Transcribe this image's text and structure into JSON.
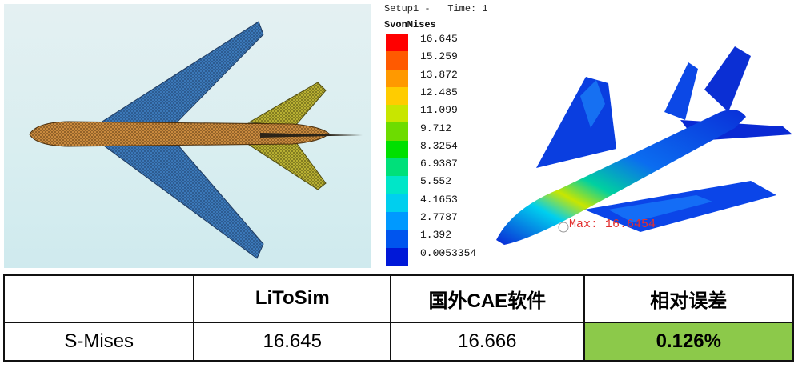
{
  "result_panel": {
    "setup_title": "Setup1 -   Time: 1",
    "legend_title": "SvonMises",
    "legend_values": [
      "16.645",
      "15.259",
      "13.872",
      "12.485",
      "11.099",
      "9.712",
      "8.3254",
      "6.9387",
      "5.552",
      "4.1653",
      "2.7787",
      "1.392",
      "0.0053354"
    ],
    "legend_colors": [
      "#ff0000",
      "#ff5a00",
      "#ff9900",
      "#ffcc00",
      "#c8e600",
      "#6ddc00",
      "#00e000",
      "#00e07a",
      "#00e6c8",
      "#00cfee",
      "#0099ff",
      "#0055ee",
      "#0018d8"
    ],
    "max_label": "Max: 16.6454"
  },
  "table": {
    "headers": [
      "",
      "LiToSim",
      "国外CAE软件",
      "相对误差"
    ],
    "row": {
      "label": "S-Mises",
      "litosim": "16.645",
      "foreign": "16.666",
      "error": "0.126%"
    },
    "highlight_color": "#8cc94a"
  }
}
